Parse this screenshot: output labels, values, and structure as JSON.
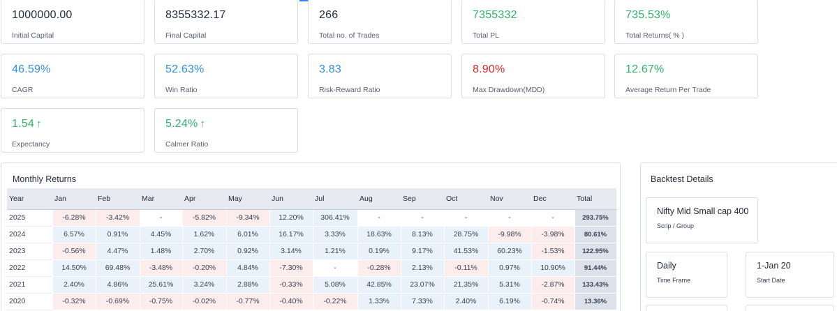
{
  "colors": {
    "positive": "#2fb36a",
    "negative": "#dc2626",
    "info": "#2f8fe0",
    "neutral": "#1f2937",
    "arrow_up": "#2fb36a"
  },
  "stats": [
    {
      "value": "1000000.00",
      "label": "Initial Capital",
      "tone": "neutral"
    },
    {
      "value": "8355332.17",
      "label": "Final Capital",
      "tone": "neutral"
    },
    {
      "value": "266",
      "label": "Total no. of Trades",
      "tone": "neutral"
    },
    {
      "value": "7355332",
      "label": "Total PL",
      "tone": "positive"
    },
    {
      "value": "735.53%",
      "label": "Total Returns( % )",
      "tone": "positive"
    },
    {
      "value": "46.59%",
      "label": "CAGR",
      "tone": "info"
    },
    {
      "value": "52.63%",
      "label": "Win Ratio",
      "tone": "info"
    },
    {
      "value": "3.83",
      "label": "Risk-Reward Ratio",
      "tone": "info"
    },
    {
      "value": "8.90%",
      "label": "Max Drawdown(MDD)",
      "tone": "negative"
    },
    {
      "value": "12.67%",
      "label": "Average Return Per Trade",
      "tone": "positive"
    },
    {
      "value": "1.54",
      "label": "Expectancy",
      "tone": "positive",
      "arrow": "↑"
    },
    {
      "value": "5.24%",
      "label": "Calmer Ratio",
      "tone": "positive",
      "arrow": "↑"
    }
  ],
  "monthly_returns": {
    "title": "Monthly Returns",
    "columns": [
      "Year",
      "Jan",
      "Feb",
      "Mar",
      "Apr",
      "May",
      "Jun",
      "Jul",
      "Aug",
      "Sep",
      "Oct",
      "Nov",
      "Dec",
      "Total"
    ],
    "rows": [
      {
        "year": "2025",
        "months": [
          "-6.28%",
          "-3.42%",
          "-",
          "-5.82%",
          "-9.34%",
          "12.20%",
          "306.41%",
          "-",
          "-",
          "-",
          "-",
          "-"
        ],
        "total": "293.75%"
      },
      {
        "year": "2024",
        "months": [
          "6.57%",
          "0.91%",
          "4.45%",
          "1.62%",
          "6.01%",
          "16.17%",
          "3.33%",
          "18.63%",
          "8.13%",
          "28.75%",
          "-9.98%",
          "-3.98%"
        ],
        "total": "80.61%"
      },
      {
        "year": "2023",
        "months": [
          "-0.56%",
          "4.47%",
          "1.48%",
          "2.70%",
          "0.92%",
          "3.14%",
          "1.21%",
          "0.19%",
          "9.17%",
          "41.53%",
          "60.23%",
          "-1.53%"
        ],
        "total": "122.95%"
      },
      {
        "year": "2022",
        "months": [
          "14.50%",
          "69.48%",
          "-3.48%",
          "-0.20%",
          "4.84%",
          "-7.30%",
          "-",
          "-0.28%",
          "2.13%",
          "-0.11%",
          "0.97%",
          "10.90%"
        ],
        "total": "91.44%"
      },
      {
        "year": "2021",
        "months": [
          "2.40%",
          "4.86%",
          "25.61%",
          "3.24%",
          "2.88%",
          "-0.33%",
          "5.08%",
          "42.85%",
          "23.07%",
          "21.35%",
          "5.31%",
          "-2.87%"
        ],
        "total": "133.43%"
      },
      {
        "year": "2020",
        "months": [
          "-0.32%",
          "-0.69%",
          "-0.75%",
          "-0.02%",
          "-0.77%",
          "-0.40%",
          "-0.22%",
          "1.33%",
          "7.33%",
          "2.40%",
          "6.19%",
          "-0.74%"
        ],
        "total": "13.36%"
      }
    ]
  },
  "backtest": {
    "title": "Backtest Details",
    "scrip": {
      "value": "Nifty Mid Small cap 400",
      "label": "Scrip / Group"
    },
    "time_frame": {
      "value": "Daily",
      "label": "Time Frame"
    },
    "start_date": {
      "value": "1-Jan 20",
      "label": "Start Date"
    }
  }
}
